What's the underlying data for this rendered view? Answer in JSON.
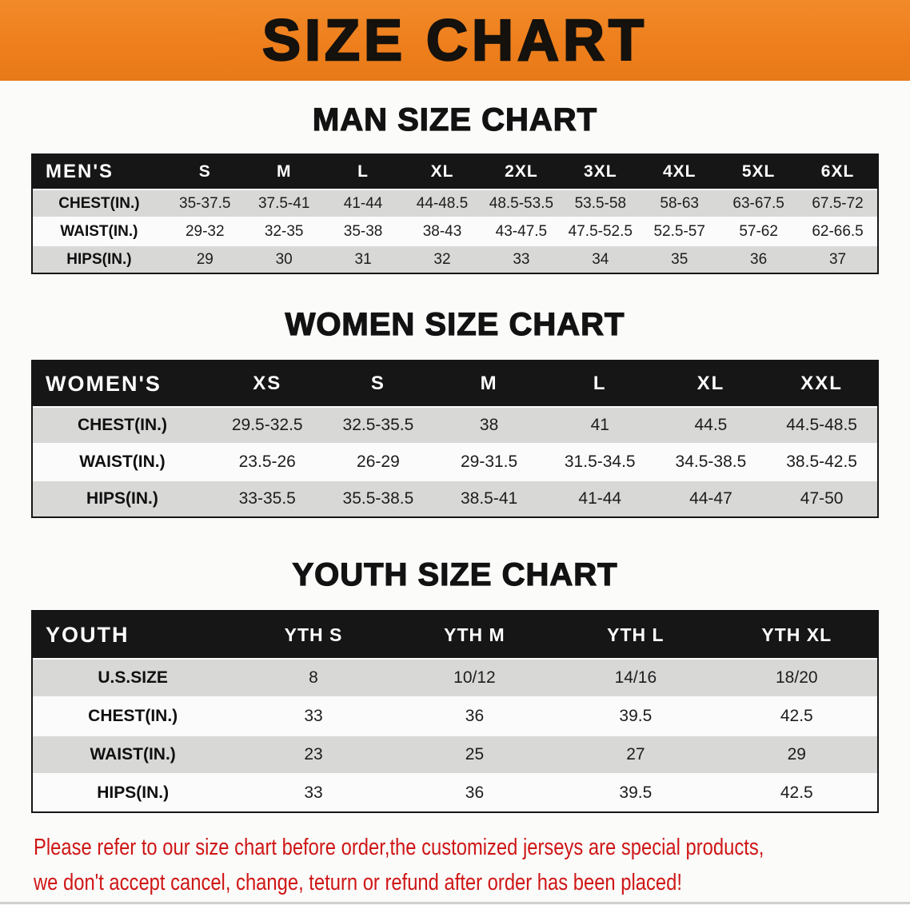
{
  "banner": {
    "title": "SIZE CHART",
    "bg_color": "#ee7f1c"
  },
  "chart_data": [
    {
      "type": "table",
      "title": "MAN SIZE CHART",
      "columns": [
        "MEN'S",
        "S",
        "M",
        "L",
        "XL",
        "2XL",
        "3XL",
        "4XL",
        "5XL",
        "6XL"
      ],
      "rows": [
        [
          "CHEST(IN.)",
          "35-37.5",
          "37.5-41",
          "41-44",
          "44-48.5",
          "48.5-53.5",
          "53.5-58",
          "58-63",
          "63-67.5",
          "67.5-72"
        ],
        [
          "WAIST(IN.)",
          "29-32",
          "32-35",
          "35-38",
          "38-43",
          "43-47.5",
          "47.5-52.5",
          "52.5-57",
          "57-62",
          "62-66.5"
        ],
        [
          "HIPS(IN.)",
          "29",
          "30",
          "31",
          "32",
          "33",
          "34",
          "35",
          "36",
          "37"
        ]
      ]
    },
    {
      "type": "table",
      "title": "WOMEN SIZE CHART",
      "columns": [
        "WOMEN'S",
        "XS",
        "S",
        "M",
        "L",
        "XL",
        "XXL"
      ],
      "rows": [
        [
          "CHEST(IN.)",
          "29.5-32.5",
          "32.5-35.5",
          "38",
          "41",
          "44.5",
          "44.5-48.5"
        ],
        [
          "WAIST(IN.)",
          "23.5-26",
          "26-29",
          "29-31.5",
          "31.5-34.5",
          "34.5-38.5",
          "38.5-42.5"
        ],
        [
          "HIPS(IN.)",
          "33-35.5",
          "35.5-38.5",
          "38.5-41",
          "41-44",
          "44-47",
          "47-50"
        ]
      ]
    },
    {
      "type": "table",
      "title": "YOUTH SIZE CHART",
      "columns": [
        "YOUTH",
        "YTH S",
        "YTH M",
        "YTH L",
        "YTH XL"
      ],
      "rows": [
        [
          "U.S.SIZE",
          "8",
          "10/12",
          "14/16",
          "18/20"
        ],
        [
          "CHEST(IN.)",
          "33",
          "36",
          "39.5",
          "42.5"
        ],
        [
          "WAIST(IN.)",
          "23",
          "25",
          "27",
          "29"
        ],
        [
          "HIPS(IN.)",
          "33",
          "36",
          "39.5",
          "42.5"
        ]
      ]
    }
  ],
  "footer": {
    "line1": "Please refer to our size chart before order,the customized jerseys are special products,",
    "line2": "we don't accept cancel, change, teturn or refund after order has been placed!"
  }
}
